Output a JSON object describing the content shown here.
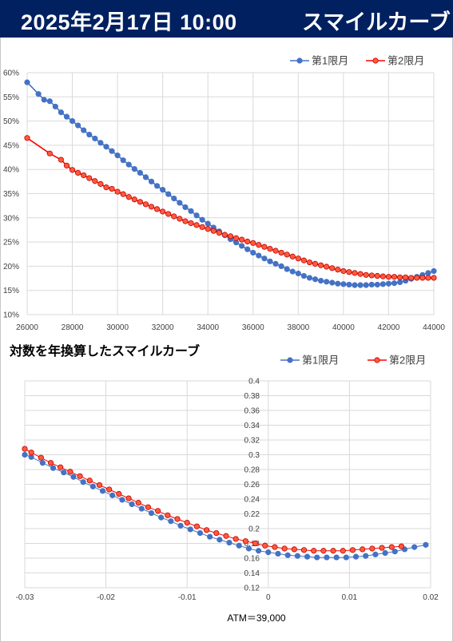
{
  "header": {
    "date": "2025年2月17日 10:00",
    "title": "スマイルカーブ"
  },
  "colors": {
    "header_bg": "#002060",
    "series1": "#4472C4",
    "series2": "#FF0000",
    "series2_fill": "#FF5A3C",
    "grid": "#d9d9d9"
  },
  "chart_data": [
    {
      "type": "line",
      "title": "",
      "xlabel": "",
      "ylabel": "",
      "xlim": [
        26000,
        44000
      ],
      "ylim": [
        0.1,
        0.6
      ],
      "x_ticks": [
        "26000",
        "28000",
        "30000",
        "32000",
        "34000",
        "36000",
        "38000",
        "40000",
        "42000",
        "44000"
      ],
      "y_ticks": [
        "10%",
        "15%",
        "20%",
        "25%",
        "30%",
        "35%",
        "40%",
        "45%",
        "50%",
        "55%",
        "60%"
      ],
      "legend": "top-right",
      "grid": true,
      "series": [
        {
          "name": "第1限月",
          "x": [
            26000,
            26500,
            26750,
            27000,
            27250,
            27500,
            27750,
            28000,
            28250,
            28500,
            28750,
            29000,
            29250,
            29500,
            29750,
            30000,
            30250,
            30500,
            30750,
            31000,
            31250,
            31500,
            31750,
            32000,
            32250,
            32500,
            32750,
            33000,
            33250,
            33500,
            33750,
            34000,
            34250,
            34500,
            34750,
            35000,
            35250,
            35500,
            35750,
            36000,
            36250,
            36500,
            36750,
            37000,
            37250,
            37500,
            37750,
            38000,
            38250,
            38500,
            38750,
            39000,
            39250,
            39500,
            39750,
            40000,
            40250,
            40500,
            40750,
            41000,
            41250,
            41500,
            41750,
            42000,
            42250,
            42500,
            42750,
            43000,
            43250,
            43500,
            43750,
            44000
          ],
          "y": [
            0.58,
            0.556,
            0.544,
            0.541,
            0.53,
            0.518,
            0.509,
            0.5,
            0.491,
            0.481,
            0.472,
            0.464,
            0.455,
            0.447,
            0.438,
            0.429,
            0.419,
            0.41,
            0.401,
            0.393,
            0.384,
            0.375,
            0.366,
            0.358,
            0.349,
            0.34,
            0.331,
            0.322,
            0.314,
            0.305,
            0.296,
            0.288,
            0.28,
            0.272,
            0.264,
            0.256,
            0.249,
            0.242,
            0.235,
            0.228,
            0.222,
            0.216,
            0.21,
            0.205,
            0.2,
            0.194,
            0.189,
            0.185,
            0.18,
            0.176,
            0.173,
            0.17,
            0.168,
            0.166,
            0.164,
            0.163,
            0.162,
            0.161,
            0.161,
            0.161,
            0.162,
            0.162,
            0.163,
            0.164,
            0.165,
            0.167,
            0.17,
            0.174,
            0.178,
            0.182,
            0.186,
            0.19
          ]
        },
        {
          "name": "第2限月",
          "x": [
            26000,
            27000,
            27500,
            27750,
            28000,
            28250,
            28500,
            28750,
            29000,
            29250,
            29500,
            29750,
            30000,
            30250,
            30500,
            30750,
            31000,
            31250,
            31500,
            31750,
            32000,
            32250,
            32500,
            32750,
            33000,
            33250,
            33500,
            33750,
            34000,
            34250,
            34500,
            34750,
            35000,
            35250,
            35500,
            35750,
            36000,
            36250,
            36500,
            36750,
            37000,
            37250,
            37500,
            37750,
            38000,
            38250,
            38500,
            38750,
            39000,
            39250,
            39500,
            39750,
            40000,
            40250,
            40500,
            40750,
            41000,
            41250,
            41500,
            41750,
            42000,
            42250,
            42500,
            42750,
            43000,
            43250,
            43500,
            43750,
            44000
          ],
          "y": [
            0.465,
            0.433,
            0.42,
            0.408,
            0.399,
            0.393,
            0.388,
            0.382,
            0.376,
            0.37,
            0.363,
            0.36,
            0.354,
            0.349,
            0.343,
            0.338,
            0.333,
            0.328,
            0.323,
            0.318,
            0.313,
            0.308,
            0.303,
            0.298,
            0.293,
            0.289,
            0.285,
            0.281,
            0.277,
            0.273,
            0.269,
            0.265,
            0.262,
            0.258,
            0.255,
            0.251,
            0.248,
            0.244,
            0.24,
            0.236,
            0.232,
            0.228,
            0.224,
            0.22,
            0.216,
            0.212,
            0.208,
            0.205,
            0.202,
            0.199,
            0.196,
            0.193,
            0.19,
            0.188,
            0.186,
            0.184,
            0.182,
            0.181,
            0.18,
            0.179,
            0.178,
            0.178,
            0.177,
            0.177,
            0.176,
            0.176,
            0.176,
            0.176,
            0.176
          ]
        }
      ]
    },
    {
      "type": "line",
      "title": "対数を年換算したスマイルカーブ",
      "xlabel": "ATM＝39,000",
      "ylabel": "",
      "xlim": [
        -0.03,
        0.02
      ],
      "ylim": [
        0.12,
        0.4
      ],
      "x_ticks": [
        "-0.03",
        "-0.02",
        "-0.01",
        "0",
        "0.01",
        "0.02"
      ],
      "y_ticks": [
        "0.12",
        "0.14",
        "0.16",
        "0.18",
        "0.2",
        "0.22",
        "0.24",
        "0.26",
        "0.28",
        "0.3",
        "0.32",
        "0.34",
        "0.36",
        "0.38",
        "0.4"
      ],
      "legend": "top-right",
      "grid": true,
      "series": [
        {
          "name": "第1限月",
          "x": [
            -0.03,
            -0.0292,
            -0.0278,
            -0.0265,
            -0.0252,
            -0.024,
            -0.0228,
            -0.0216,
            -0.0204,
            -0.0192,
            -0.018,
            -0.0168,
            -0.0156,
            -0.0144,
            -0.0132,
            -0.012,
            -0.0108,
            -0.0096,
            -0.0084,
            -0.0072,
            -0.006,
            -0.0048,
            -0.0036,
            -0.0024,
            -0.0012,
            0.0,
            0.0012,
            0.0024,
            0.0036,
            0.0048,
            0.006,
            0.0072,
            0.0084,
            0.0096,
            0.0108,
            0.012,
            0.0132,
            0.0144,
            0.0156,
            0.0168,
            0.018,
            0.0194
          ],
          "y": [
            0.3,
            0.297,
            0.289,
            0.282,
            0.276,
            0.27,
            0.263,
            0.257,
            0.251,
            0.245,
            0.239,
            0.233,
            0.227,
            0.221,
            0.215,
            0.21,
            0.204,
            0.199,
            0.194,
            0.189,
            0.185,
            0.181,
            0.177,
            0.173,
            0.17,
            0.168,
            0.166,
            0.164,
            0.163,
            0.162,
            0.161,
            0.161,
            0.161,
            0.161,
            0.162,
            0.163,
            0.165,
            0.167,
            0.169,
            0.172,
            0.175,
            0.178
          ]
        },
        {
          "name": "第2限月",
          "x": [
            -0.03,
            -0.0292,
            -0.028,
            -0.0268,
            -0.0256,
            -0.0244,
            -0.0232,
            -0.022,
            -0.0208,
            -0.0196,
            -0.0184,
            -0.0172,
            -0.016,
            -0.0148,
            -0.0136,
            -0.0124,
            -0.0112,
            -0.01,
            -0.0088,
            -0.0076,
            -0.0064,
            -0.0052,
            -0.004,
            -0.0028,
            -0.0016,
            -0.0004,
            0.0008,
            0.002,
            0.0032,
            0.0044,
            0.0056,
            0.0068,
            0.008,
            0.0092,
            0.0104,
            0.0116,
            0.0128,
            0.014,
            0.0152,
            0.0164
          ],
          "y": [
            0.308,
            0.303,
            0.296,
            0.289,
            0.283,
            0.277,
            0.271,
            0.265,
            0.259,
            0.253,
            0.247,
            0.241,
            0.235,
            0.229,
            0.224,
            0.218,
            0.213,
            0.208,
            0.203,
            0.198,
            0.194,
            0.19,
            0.186,
            0.183,
            0.18,
            0.177,
            0.175,
            0.173,
            0.172,
            0.171,
            0.17,
            0.17,
            0.17,
            0.17,
            0.171,
            0.172,
            0.173,
            0.174,
            0.175,
            0.176
          ]
        }
      ]
    }
  ]
}
